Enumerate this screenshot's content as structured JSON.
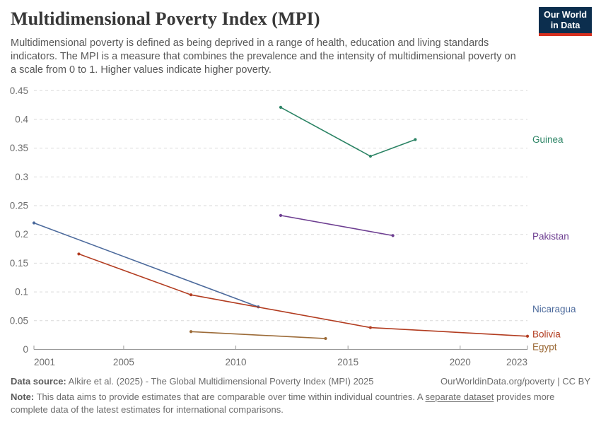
{
  "header": {
    "title": "Multidimensional Poverty Index (MPI)",
    "subtitle_lines": [
      "Multidimensional poverty is defined as being deprived in a range of health, education and living standards",
      "indicators. The MPI is a measure that combines the prevalence and the intensity of multidimensional poverty on",
      "a scale from 0 to 1. Higher values indicate higher poverty."
    ],
    "logo_line1": "Our World",
    "logo_line2": "in Data",
    "logo_bg_color": "#0c2e4e",
    "logo_accent_color": "#d7301f"
  },
  "chart_data": {
    "type": "line",
    "title": "Multidimensional Poverty Index (MPI)",
    "xlabel": "",
    "ylabel": "",
    "xlim": [
      2001,
      2023
    ],
    "ylim": [
      0,
      0.45
    ],
    "x_tick_labels": [
      "2001",
      "2005",
      "2010",
      "2015",
      "2020",
      "2023"
    ],
    "x_ticks": [
      2001,
      2005,
      2010,
      2015,
      2020,
      2023
    ],
    "y_tick_labels": [
      "0",
      "0.05",
      "0.1",
      "0.15",
      "0.2",
      "0.25",
      "0.3",
      "0.35",
      "0.4",
      "0.45"
    ],
    "y_ticks": [
      0,
      0.05,
      0.1,
      0.15,
      0.2,
      0.25,
      0.3,
      0.35,
      0.4,
      0.45
    ],
    "grid": "horizontal-dashed",
    "legend_position": "end-of-line-labels-right",
    "series": [
      {
        "name": "Guinea",
        "color": "#2C8465",
        "points": [
          [
            2012,
            0.421
          ],
          [
            2016,
            0.336
          ],
          [
            2018,
            0.365
          ]
        ]
      },
      {
        "name": "Pakistan",
        "color": "#6D3E91",
        "points": [
          [
            2012,
            0.233
          ],
          [
            2017,
            0.198
          ]
        ]
      },
      {
        "name": "Nicaragua",
        "color": "#4C6A9C",
        "points": [
          [
            2001,
            0.22
          ],
          [
            2011,
            0.074
          ]
        ]
      },
      {
        "name": "Bolivia",
        "color": "#B23C20",
        "points": [
          [
            2003,
            0.166
          ],
          [
            2008,
            0.095
          ],
          [
            2016,
            0.038
          ],
          [
            2023,
            0.023
          ]
        ]
      },
      {
        "name": "Egypt",
        "color": "#9C6B38",
        "points": [
          [
            2008,
            0.031
          ],
          [
            2014,
            0.019
          ]
        ]
      }
    ]
  },
  "footer": {
    "source_label": "Data source:",
    "source_text": "Alkire et al. (2025) - The Global Multidimensional Poverty Index (MPI) 2025",
    "site_text": "OurWorldinData.org/poverty",
    "separator": "|",
    "license_text": "CC BY",
    "note_label": "Note:",
    "note_pre": "This data aims to provide estimates that are comparable over time within individual countries. A",
    "note_link": "separate dataset",
    "note_post": "provides more complete data of the latest estimates for international comparisons."
  }
}
